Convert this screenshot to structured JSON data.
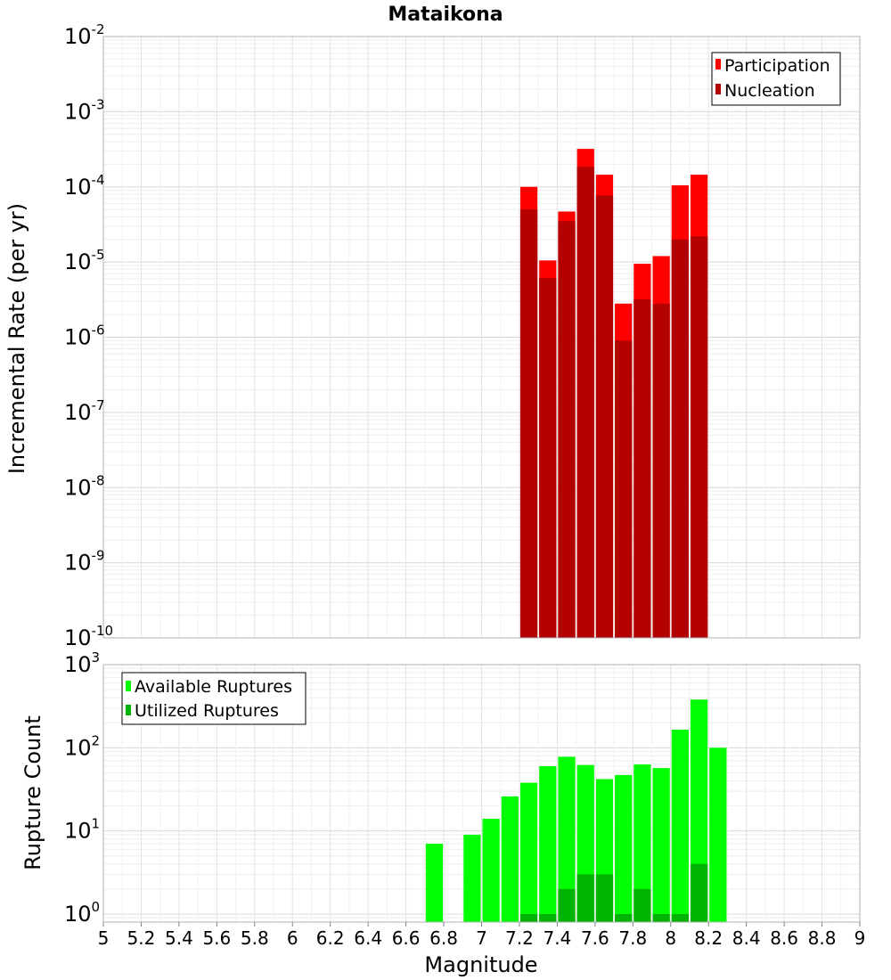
{
  "chart_data": [
    {
      "type": "bar",
      "title": "Mataikona",
      "ylabel": "Incremental Rate (per yr)",
      "yscale": "log",
      "ylim": [
        1e-10,
        0.01
      ],
      "ytick_exponents": [
        "-10",
        "-9",
        "-8",
        "-7",
        "-6",
        "-5",
        "-4",
        "-3",
        "-2"
      ],
      "ytick_base": "10",
      "legend_position": "top-right",
      "grid": true,
      "bin_width": 0.1,
      "series": [
        {
          "name": "Participation",
          "color": "#ff0000",
          "x": [
            7.25,
            7.35,
            7.45,
            7.55,
            7.65,
            7.75,
            7.85,
            7.95,
            8.05,
            8.15
          ],
          "values": [
            0.0001,
            1.05e-05,
            4.7e-05,
            0.00032,
            0.000145,
            2.8e-06,
            9.5e-06,
            1.2e-05,
            0.000105,
            0.000145
          ]
        },
        {
          "name": "Nucleation",
          "color": "#b30000",
          "x": [
            7.25,
            7.35,
            7.45,
            7.55,
            7.65,
            7.75,
            7.85,
            7.95,
            8.05,
            8.15
          ],
          "values": [
            5e-05,
            6.1e-06,
            3.5e-05,
            0.000185,
            7.7e-05,
            9e-07,
            3.2e-06,
            2.8e-06,
            2e-05,
            2.2e-05
          ]
        }
      ]
    },
    {
      "type": "bar",
      "xlabel": "Magnitude",
      "ylabel": "Rupture Count",
      "yscale": "log",
      "ylim": [
        0.8,
        1000
      ],
      "ytick_exponents": [
        "0",
        "1",
        "2",
        "3"
      ],
      "ytick_base": "10",
      "xlim": [
        5,
        9
      ],
      "xticks": [
        "5",
        "5.2",
        "5.4",
        "5.6",
        "5.8",
        "6",
        "6.2",
        "6.4",
        "6.6",
        "6.8",
        "7",
        "7.2",
        "7.4",
        "7.6",
        "7.8",
        "8",
        "8.2",
        "8.4",
        "8.6",
        "8.8",
        "9"
      ],
      "legend_position": "top-left",
      "grid": true,
      "bin_width": 0.1,
      "series": [
        {
          "name": "Available Ruptures",
          "color": "#00ff00",
          "x": [
            6.75,
            6.95,
            7.05,
            7.15,
            7.25,
            7.35,
            7.45,
            7.55,
            7.65,
            7.75,
            7.85,
            7.95,
            8.05,
            8.15,
            8.25
          ],
          "values": [
            7,
            9,
            14,
            26,
            38,
            60,
            78,
            62,
            42,
            47,
            63,
            57,
            165,
            380,
            100
          ]
        },
        {
          "name": "Utilized Ruptures",
          "color": "#00b300",
          "x": [
            7.25,
            7.35,
            7.45,
            7.55,
            7.65,
            7.75,
            7.85,
            7.95,
            8.05,
            8.15
          ],
          "values": [
            1,
            1,
            2,
            3,
            3,
            1,
            2,
            1,
            1,
            4
          ]
        }
      ]
    }
  ]
}
